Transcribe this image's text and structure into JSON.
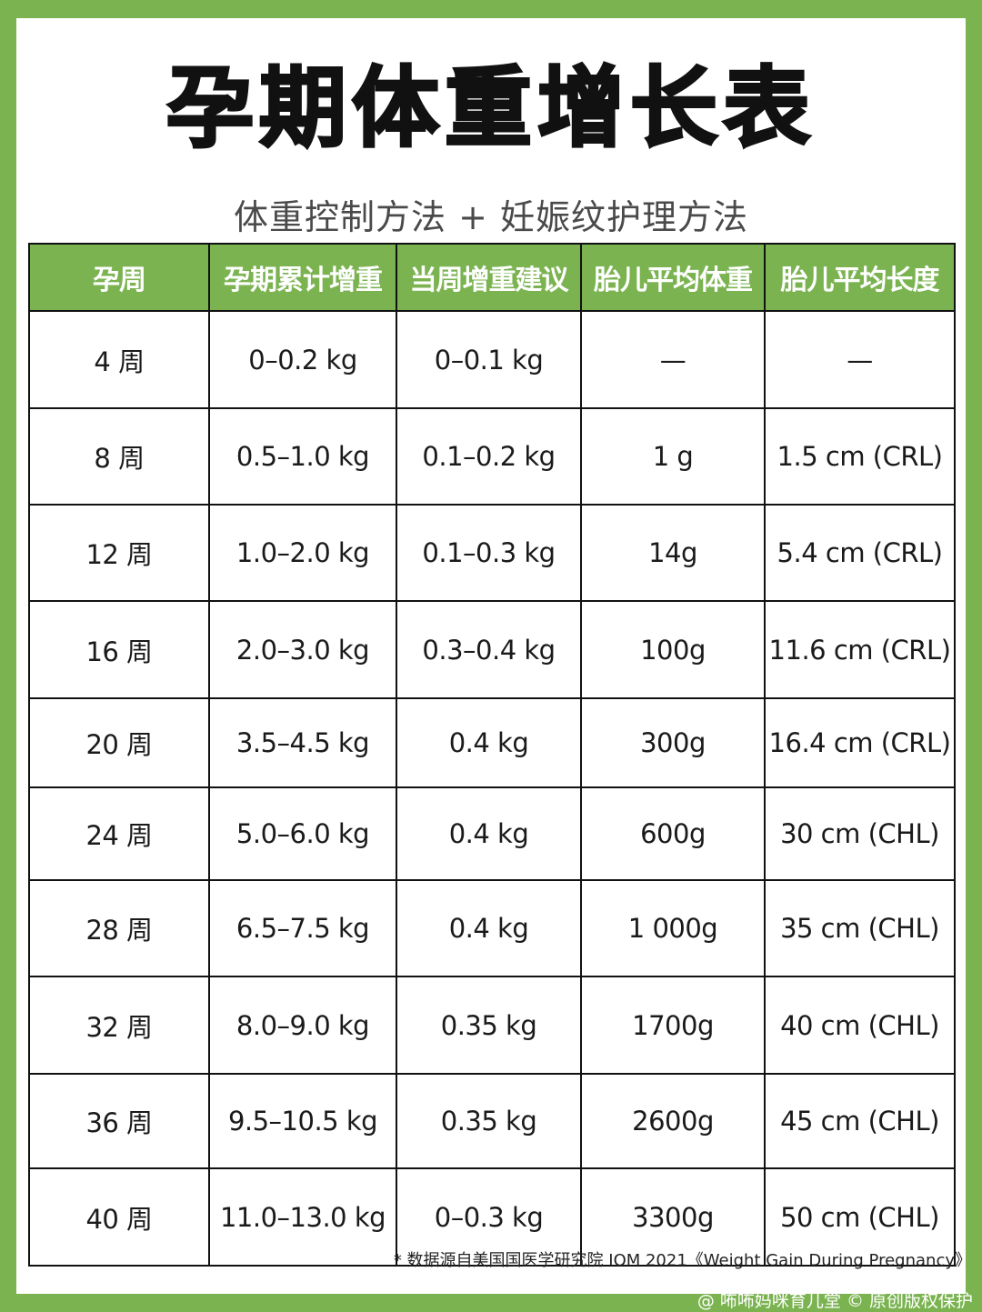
{
  "title": "孕期体重增长表",
  "subtitle": "体重控制方法 + 妊娠纹护理方法",
  "table": {
    "headers": [
      "孕周",
      "孕期累计增重",
      "当周增重建议",
      "胎儿平均体重",
      "胎儿平均长度"
    ],
    "rows": [
      [
        "4 周",
        "0–0.2 kg",
        "0–0.1 kg",
        "—",
        "—"
      ],
      [
        "8 周",
        "0.5–1.0 kg",
        "0.1–0.2 kg",
        "1 g",
        "1.5 cm (CRL)"
      ],
      [
        "12 周",
        "1.0–2.0 kg",
        "0.1–0.3 kg",
        "14g",
        "5.4 cm (CRL)"
      ],
      [
        "16 周",
        "2.0–3.0 kg",
        "0.3–0.4 kg",
        "100g",
        "11.6 cm (CRL)"
      ],
      [
        "20 周",
        "3.5–4.5 kg",
        "0.4 kg",
        "300g",
        "16.4 cm (CRL)"
      ],
      [
        "24 周",
        "5.0–6.0 kg",
        "0.4 kg",
        "600g",
        "30 cm (CHL)"
      ],
      [
        "28 周",
        "6.5–7.5 kg",
        "0.4 kg",
        "1 000g",
        "35 cm (CHL)"
      ],
      [
        "32 周",
        "8.0–9.0 kg",
        "0.35 kg",
        "1700g",
        "40 cm (CHL)"
      ],
      [
        "36 周",
        "9.5–10.5 kg",
        "0.35 kg",
        "2600g",
        "45 cm (CHL)"
      ],
      [
        "40 周",
        "11.0–13.0 kg",
        "0–0.3 kg",
        "3300g",
        "50 cm (CHL)"
      ]
    ]
  },
  "footnote": "* 数据源自美国国医学研究院 IOM 2021《Weight Gain During Pregnancy》",
  "watermark": "@ 咘咘妈咪育儿堂 © 原创版权保护",
  "colors": {
    "accent_green": "#7ab350",
    "header_text": "#ffffff",
    "border": "#111111"
  }
}
